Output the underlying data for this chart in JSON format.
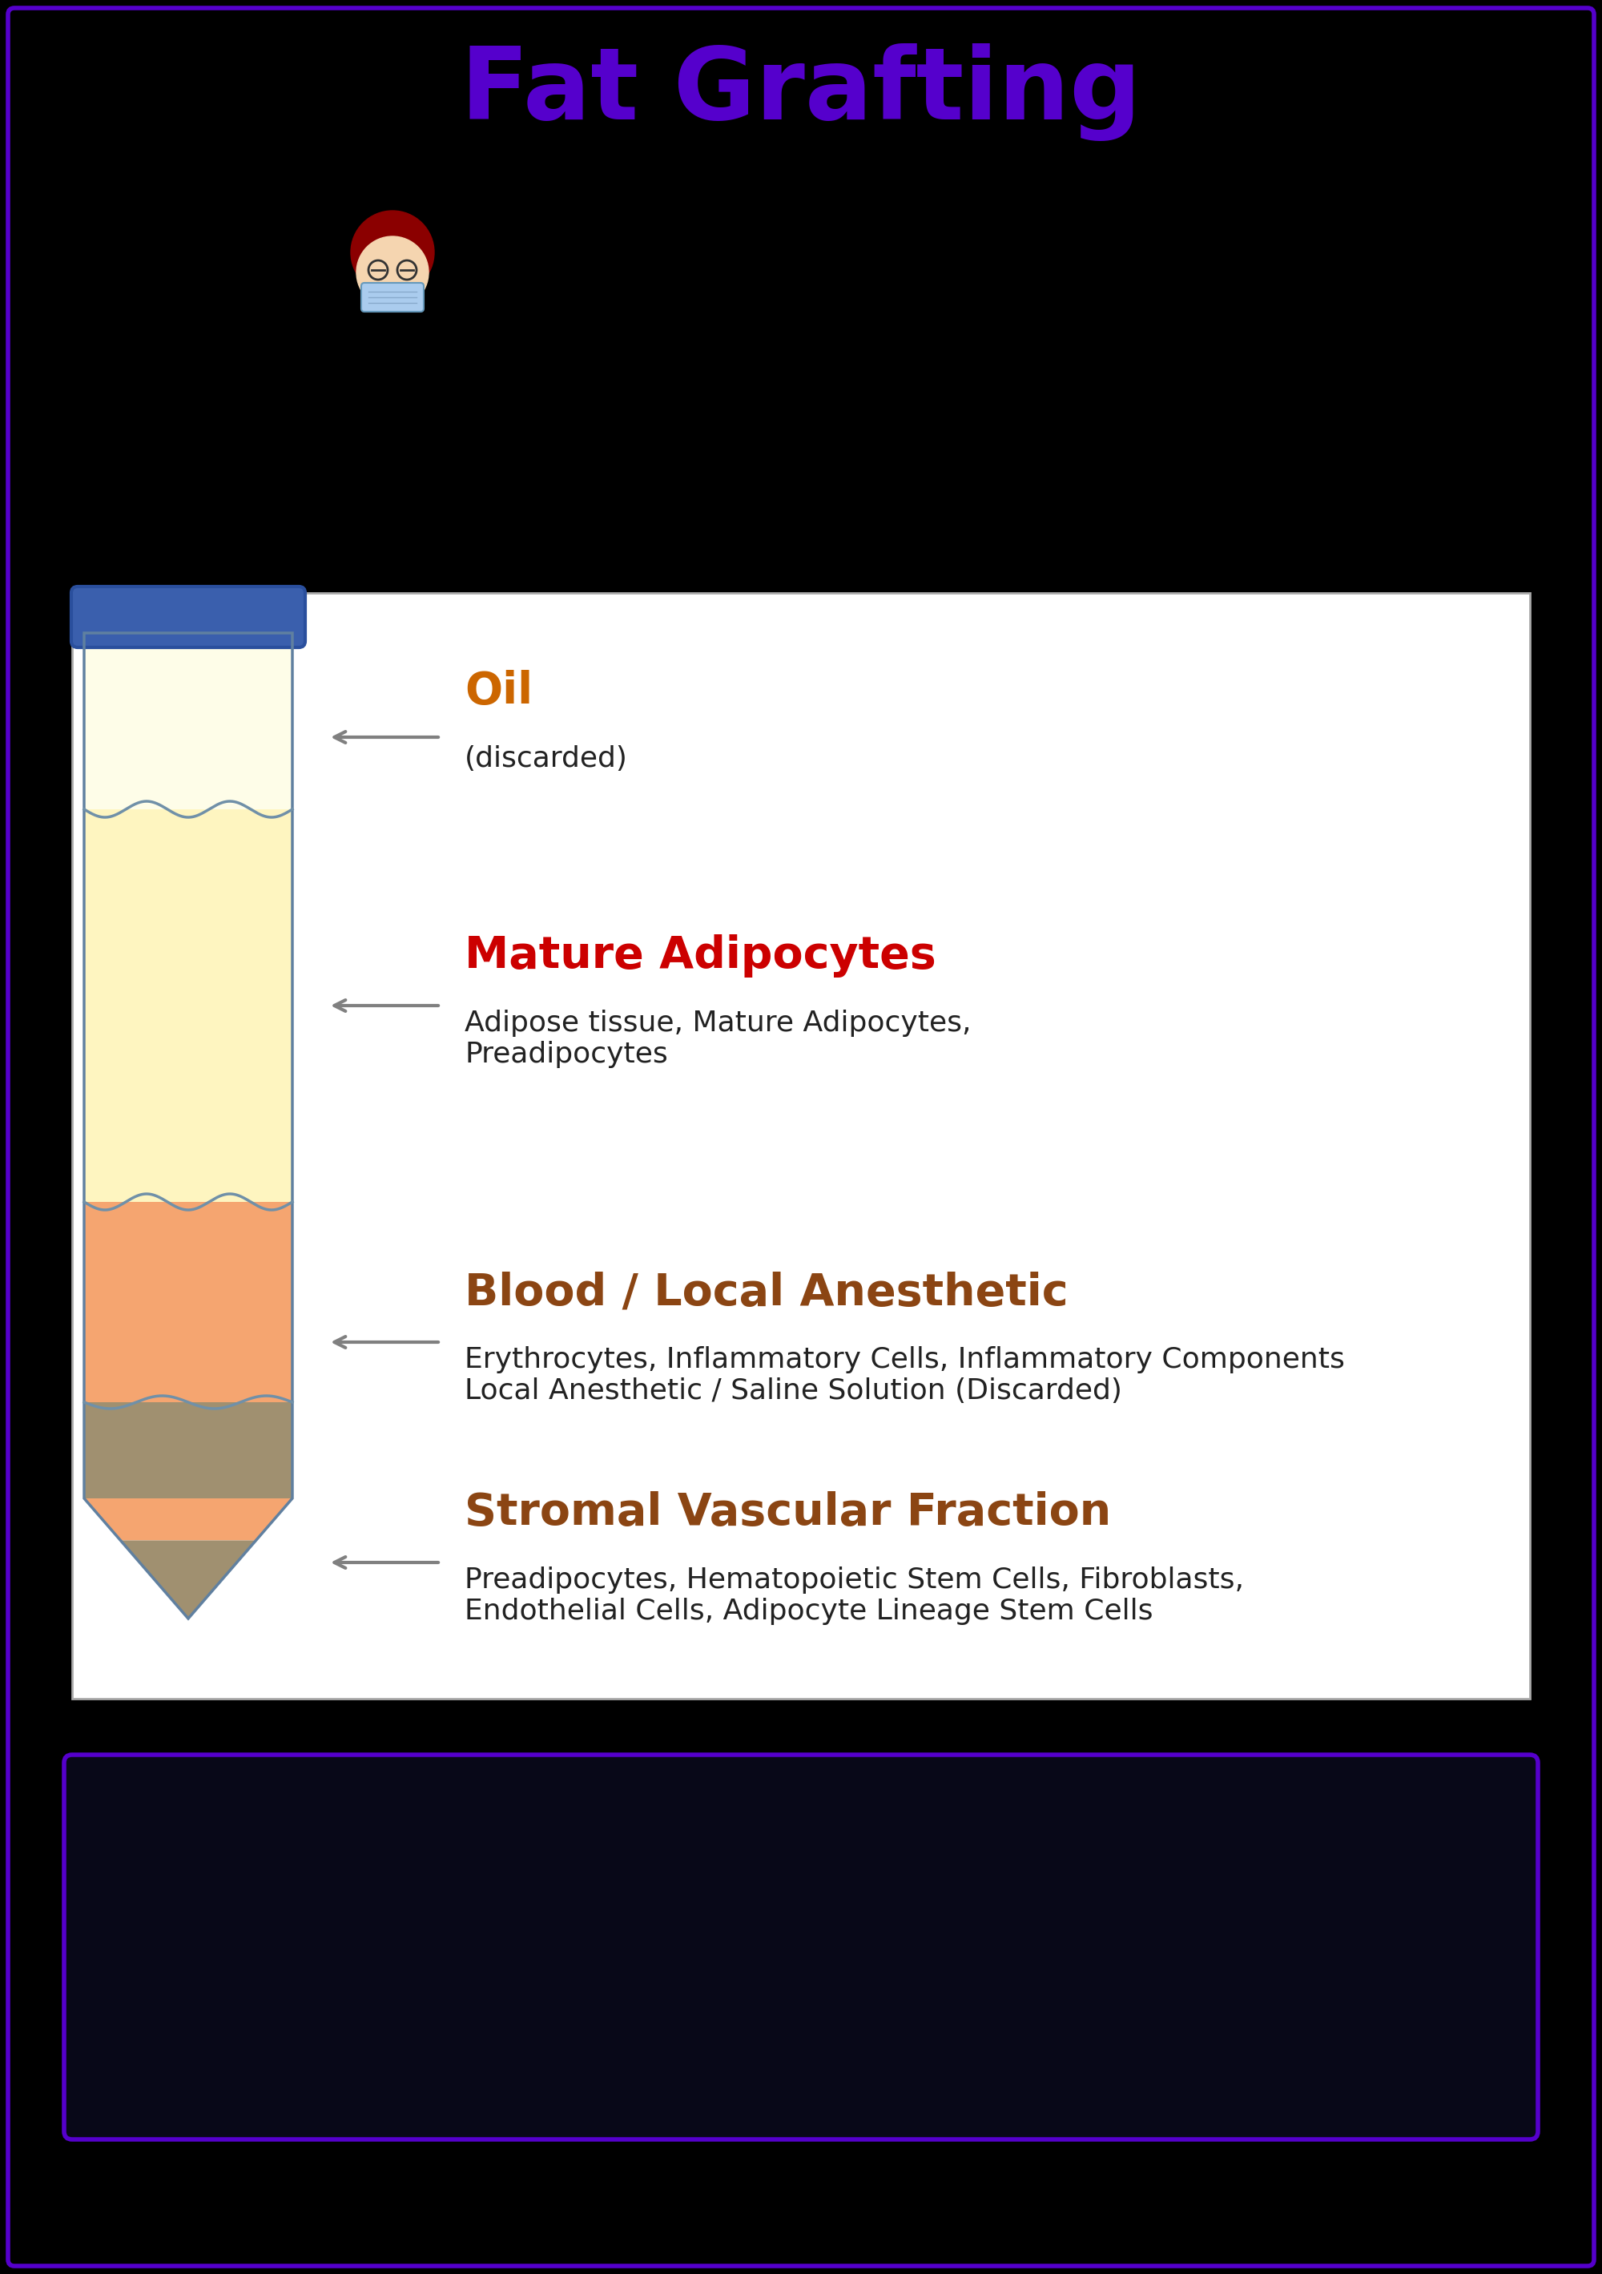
{
  "title": "Fat Grafting",
  "title_color": "#5500cc",
  "title_fontsize": 90,
  "background_color": "#000000",
  "border_color": "#5500cc",
  "panel_bg": "#ffffff",
  "tube_cap_color": "#3a5fad",
  "tube_border_color": "#6080a0",
  "separator_color": "#7090a8",
  "arrow_color": "#808080",
  "layer_colors": [
    "#fefde8",
    "#fef5c0",
    "#f5a570",
    "#a09070"
  ],
  "layers": [
    {
      "label": "Oil",
      "sublabel": "(discarded)",
      "label_color": "#cc6600",
      "sublabel_color": "#222222",
      "desc": "",
      "desc_color": "#222222",
      "label_fontsize": 40,
      "desc_fontsize": 26
    },
    {
      "label": "Mature Adipocytes",
      "sublabel": "",
      "label_color": "#cc0000",
      "sublabel_color": "#222222",
      "desc": "Adipose tissue, Mature Adipocytes,\nPreadipocytes",
      "desc_color": "#222222",
      "label_fontsize": 40,
      "desc_fontsize": 26
    },
    {
      "label": "Blood / Local Anesthetic",
      "sublabel": "",
      "label_color": "#8B4513",
      "sublabel_color": "#222222",
      "desc": "Erythrocytes, Inflammatory Cells, Inflammatory Components\nLocal Anesthetic / Saline Solution (Discarded)",
      "desc_color": "#222222",
      "label_fontsize": 40,
      "desc_fontsize": 26
    },
    {
      "label": "Stromal Vascular Fraction",
      "sublabel": "",
      "label_color": "#8B4513",
      "sublabel_color": "#222222",
      "desc": "Preadipocytes, Hematopoietic Stem Cells, Fibroblasts,\nEndothelial Cells, Adipocyte Lineage Stem Cells",
      "desc_color": "#222222",
      "label_fontsize": 40,
      "desc_fontsize": 26
    }
  ],
  "bottom_box_border": "#5500cc",
  "bottom_box_bg": "#080818"
}
